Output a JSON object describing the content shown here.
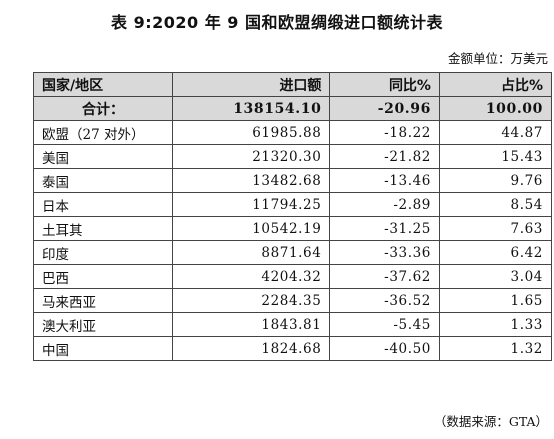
{
  "title": "表 9:2020 年 9 国和欧盟绸缎进口额统计表",
  "unit": "金额单位：万美元",
  "headers": [
    "国家/地区",
    "进口额",
    "同比%",
    "占比%"
  ],
  "total": {
    "name": "合计：",
    "import": "138154.10",
    "yoy": "-20.96",
    "share": "100.00"
  },
  "rows": [
    {
      "name": "欧盟（27 对外）",
      "import": "61985.88",
      "yoy": "-18.22",
      "share": "44.87"
    },
    {
      "name": "美国",
      "import": "21320.30",
      "yoy": "-21.82",
      "share": "15.43"
    },
    {
      "name": "泰国",
      "import": "13482.68",
      "yoy": "-13.46",
      "share": "9.76"
    },
    {
      "name": "日本",
      "import": "11794.25",
      "yoy": "-2.89",
      "share": "8.54"
    },
    {
      "name": "土耳其",
      "import": "10542.19",
      "yoy": "-31.25",
      "share": "7.63"
    },
    {
      "name": "印度",
      "import": "8871.64",
      "yoy": "-33.36",
      "share": "6.42"
    },
    {
      "name": "巴西",
      "import": "4204.32",
      "yoy": "-37.62",
      "share": "3.04"
    },
    {
      "name": "马来西亚",
      "import": "2284.35",
      "yoy": "-36.52",
      "share": "1.65"
    },
    {
      "name": "澳大利亚",
      "import": "1843.81",
      "yoy": "-5.45",
      "share": "1.33"
    },
    {
      "name": "中国",
      "import": "1824.68",
      "yoy": "-40.50",
      "share": "1.32"
    }
  ],
  "source": "（数据来源：GTA）"
}
